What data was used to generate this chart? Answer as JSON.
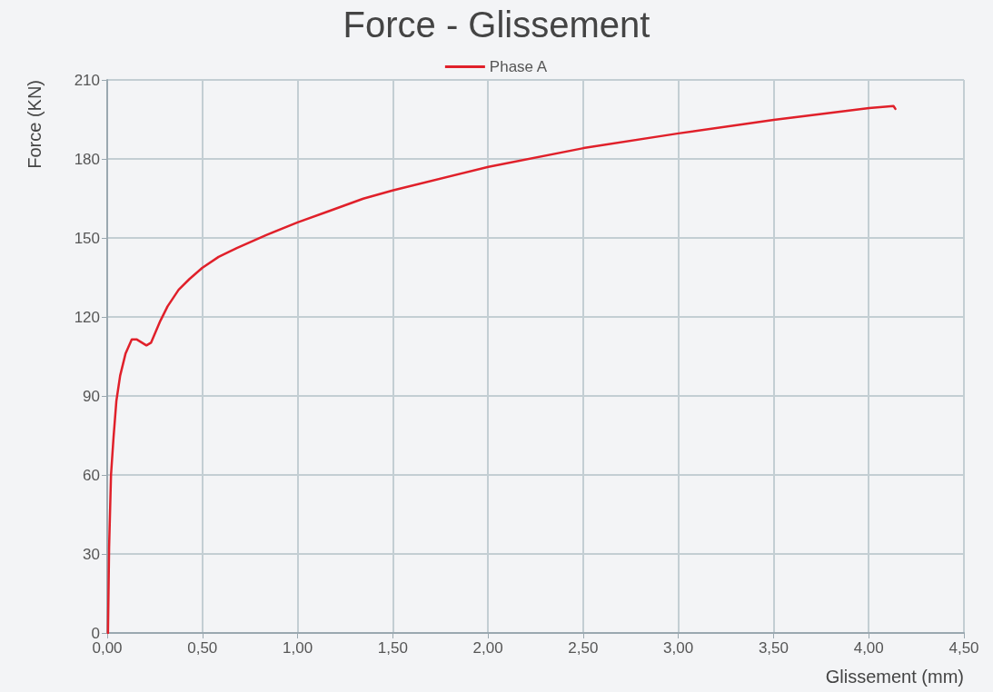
{
  "chart_data": {
    "type": "line",
    "title": "Force - Glissement",
    "xlabel": "Glissement (mm)",
    "ylabel": "Force (KN)",
    "xlim": [
      0,
      4.5
    ],
    "xticks": [
      {
        "value": 0,
        "label": "0,00"
      },
      {
        "value": 0.5,
        "label": "0,50"
      },
      {
        "value": 1,
        "label": "1,00"
      },
      {
        "value": 1.5,
        "label": "1,50"
      },
      {
        "value": 2,
        "label": "2,00"
      },
      {
        "value": 2.5,
        "label": "2,50"
      },
      {
        "value": 3,
        "label": "3,00"
      },
      {
        "value": 3.5,
        "label": "3,50"
      },
      {
        "value": 4,
        "label": "4,00"
      },
      {
        "value": 4.5,
        "label": "4,50"
      }
    ],
    "ylim": [
      0,
      210
    ],
    "yticks": [
      0,
      30,
      60,
      90,
      120,
      150,
      180,
      210
    ],
    "grid": true,
    "legend": "top",
    "marker": "none",
    "line_style": "solid",
    "series": [
      {
        "name": "Phase A",
        "color": "#e0202a",
        "x": [
          0.004,
          0.01,
          0.02,
          0.033,
          0.048,
          0.068,
          0.096,
          0.129,
          0.154,
          0.206,
          0.23,
          0.279,
          0.317,
          0.375,
          0.432,
          0.499,
          0.585,
          0.681,
          0.835,
          1.0,
          1.161,
          1.345,
          1.503,
          2.002,
          2.502,
          3.001,
          3.501,
          4.002,
          4.13,
          4.14
        ],
        "values": [
          0,
          32.5,
          60,
          74,
          88,
          97.7,
          106,
          111.5,
          111.5,
          109.2,
          110.2,
          118.5,
          124,
          130.3,
          134.4,
          138.6,
          142.8,
          146.2,
          151.1,
          155.9,
          160.1,
          164.9,
          168.1,
          177,
          184.1,
          189.7,
          194.8,
          199.3,
          200.1,
          199
        ]
      }
    ]
  }
}
